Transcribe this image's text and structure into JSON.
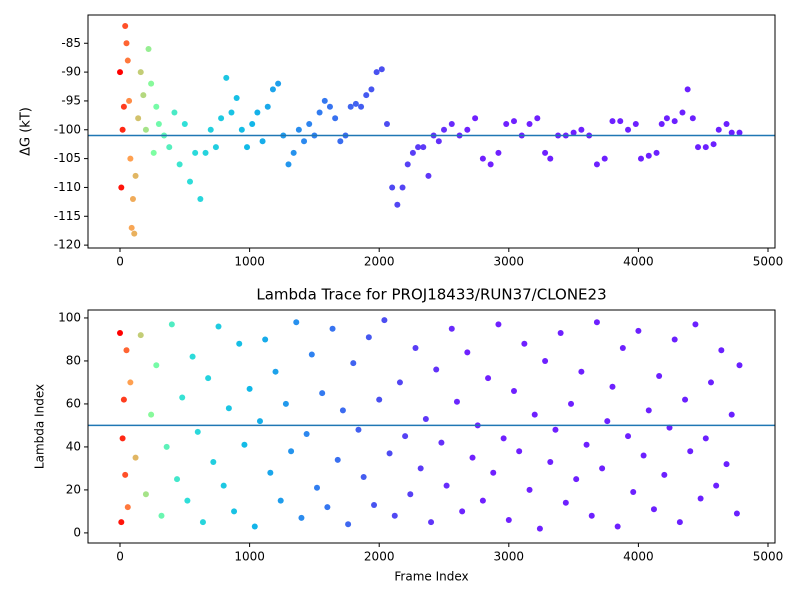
{
  "chart_data": [
    {
      "type": "scatter",
      "ylabel": "ΔG (kT)",
      "hline": -101,
      "hline_color": "#1f77b4",
      "color_stops": [
        [
          0,
          "#ff0000"
        ],
        [
          80,
          "#ffa050"
        ],
        [
          250,
          "#80ffa0"
        ],
        [
          500,
          "#30e0d8"
        ],
        [
          1000,
          "#10b8e8"
        ],
        [
          1500,
          "#3080f0"
        ],
        [
          2000,
          "#4a50f0"
        ],
        [
          2700,
          "#7020ff"
        ],
        [
          4800,
          "#6a20ff"
        ]
      ],
      "xlim": [
        -247,
        5054
      ],
      "ylim": [
        -120.5,
        -80.1
      ],
      "xticks": [
        0,
        1000,
        2000,
        3000,
        4000,
        5000
      ],
      "yticks": [
        -85,
        -90,
        -95,
        -100,
        -105,
        -110,
        -115,
        -120
      ],
      "x": [
        0,
        10,
        20,
        30,
        40,
        50,
        60,
        70,
        80,
        90,
        100,
        110,
        120,
        140,
        160,
        180,
        200,
        220,
        240,
        260,
        280,
        300,
        340,
        380,
        420,
        460,
        500,
        540,
        580,
        620,
        660,
        700,
        740,
        780,
        820,
        860,
        900,
        940,
        980,
        1020,
        1060,
        1100,
        1140,
        1180,
        1220,
        1260,
        1300,
        1340,
        1380,
        1420,
        1460,
        1500,
        1540,
        1580,
        1620,
        1660,
        1700,
        1740,
        1780,
        1820,
        1860,
        1900,
        1940,
        1980,
        2020,
        2060,
        2100,
        2140,
        2180,
        2220,
        2260,
        2300,
        2340,
        2380,
        2420,
        2460,
        2500,
        2560,
        2620,
        2680,
        2740,
        2800,
        2860,
        2920,
        2980,
        3040,
        3100,
        3160,
        3220,
        3280,
        3320,
        3380,
        3440,
        3500,
        3560,
        3620,
        3680,
        3740,
        3800,
        3860,
        3920,
        3980,
        4020,
        4080,
        4140,
        4180,
        4220,
        4280,
        4340,
        4380,
        4420,
        4460,
        4520,
        4580,
        4620,
        4680,
        4720,
        4780
      ],
      "values": [
        -90,
        -110,
        -100,
        -96,
        -82,
        -85,
        -88,
        -95,
        -105,
        -117,
        -112,
        -118,
        -108,
        -98,
        -90,
        -94,
        -100,
        -86,
        -92,
        -104,
        -96,
        -99,
        -101,
        -103,
        -97,
        -106,
        -99,
        -109,
        -104,
        -112,
        -104,
        -100,
        -103,
        -98,
        -91,
        -97,
        -94.5,
        -100,
        -103,
        -99,
        -97,
        -102,
        -96,
        -93,
        -92,
        -101,
        -106,
        -104,
        -100,
        -102,
        -99,
        -101,
        -97,
        -95,
        -96,
        -98,
        -102,
        -101,
        -96,
        -95.5,
        -96,
        -94,
        -93,
        -90,
        -89.5,
        -99,
        -110,
        -113,
        -110,
        -106,
        -104,
        -103,
        -103,
        -108,
        -101,
        -102,
        -100,
        -99,
        -101,
        -100,
        -98,
        -105,
        -106,
        -104,
        -99,
        -98.5,
        -101,
        -99,
        -98,
        -104,
        -105,
        -101,
        -101,
        -100.5,
        -100,
        -101,
        -106,
        -105,
        -98.5,
        -98.5,
        -100,
        -99,
        -105,
        -104.5,
        -104,
        -99,
        -98,
        -98.5,
        -97,
        -93,
        -98,
        -103,
        -103,
        -102.5,
        -100,
        -99,
        -100.5,
        -100.5
      ]
    },
    {
      "type": "scatter",
      "title": "Lambda Trace for PROJ18433/RUN37/CLONE23",
      "xlabel": "Frame Index",
      "ylabel": "Lambda Index",
      "hline": 50,
      "hline_color": "#1f77b4",
      "color_stops": [
        [
          0,
          "#ff0000"
        ],
        [
          80,
          "#ffa050"
        ],
        [
          250,
          "#80ffa0"
        ],
        [
          500,
          "#30e0d8"
        ],
        [
          1000,
          "#10b8e8"
        ],
        [
          1500,
          "#3080f0"
        ],
        [
          2000,
          "#4a50f0"
        ],
        [
          2700,
          "#7020ff"
        ],
        [
          4800,
          "#6a20ff"
        ]
      ],
      "xlim": [
        -247,
        5054
      ],
      "ylim": [
        -4.7,
        103.7
      ],
      "xticks": [
        0,
        1000,
        2000,
        3000,
        4000,
        5000
      ],
      "yticks": [
        0,
        20,
        40,
        60,
        80,
        100
      ],
      "x": [
        0,
        10,
        20,
        30,
        40,
        50,
        60,
        80,
        120,
        160,
        200,
        240,
        280,
        320,
        360,
        400,
        440,
        480,
        520,
        560,
        600,
        640,
        680,
        720,
        760,
        800,
        840,
        880,
        920,
        960,
        1000,
        1040,
        1080,
        1120,
        1160,
        1200,
        1240,
        1280,
        1320,
        1360,
        1400,
        1440,
        1480,
        1520,
        1560,
        1600,
        1640,
        1680,
        1720,
        1760,
        1800,
        1840,
        1880,
        1920,
        1960,
        2000,
        2040,
        2080,
        2120,
        2160,
        2200,
        2240,
        2280,
        2320,
        2360,
        2400,
        2440,
        2480,
        2520,
        2560,
        2600,
        2640,
        2680,
        2720,
        2760,
        2800,
        2840,
        2880,
        2920,
        2960,
        3000,
        3040,
        3080,
        3120,
        3160,
        3200,
        3240,
        3280,
        3320,
        3360,
        3400,
        3440,
        3480,
        3520,
        3560,
        3600,
        3640,
        3680,
        3720,
        3760,
        3800,
        3840,
        3880,
        3920,
        3960,
        4000,
        4040,
        4080,
        4120,
        4160,
        4200,
        4240,
        4280,
        4320,
        4360,
        4400,
        4440,
        4480,
        4520,
        4560,
        4600,
        4640,
        4680,
        4720,
        4760,
        4780
      ],
      "values": [
        93,
        5,
        44,
        62,
        27,
        85,
        12,
        70,
        35,
        92,
        18,
        55,
        78,
        8,
        40,
        97,
        25,
        63,
        15,
        82,
        47,
        5,
        72,
        33,
        96,
        22,
        58,
        10,
        88,
        41,
        67,
        3,
        52,
        90,
        28,
        75,
        15,
        60,
        38,
        98,
        7,
        46,
        83,
        21,
        65,
        12,
        95,
        34,
        57,
        4,
        79,
        48,
        26,
        91,
        13,
        62,
        99,
        37,
        8,
        70,
        45,
        18,
        86,
        30,
        53,
        5,
        76,
        42,
        22,
        95,
        61,
        10,
        84,
        35,
        50,
        15,
        72,
        28,
        97,
        44,
        6,
        66,
        38,
        88,
        20,
        55,
        2,
        80,
        33,
        48,
        93,
        14,
        60,
        25,
        75,
        41,
        8,
        98,
        30,
        52,
        68,
        3,
        86,
        45,
        19,
        94,
        36,
        57,
        11,
        73,
        27,
        49,
        90,
        5,
        62,
        38,
        97,
        16,
        44,
        70,
        22,
        85,
        32,
        55,
        9,
        78
      ]
    }
  ]
}
